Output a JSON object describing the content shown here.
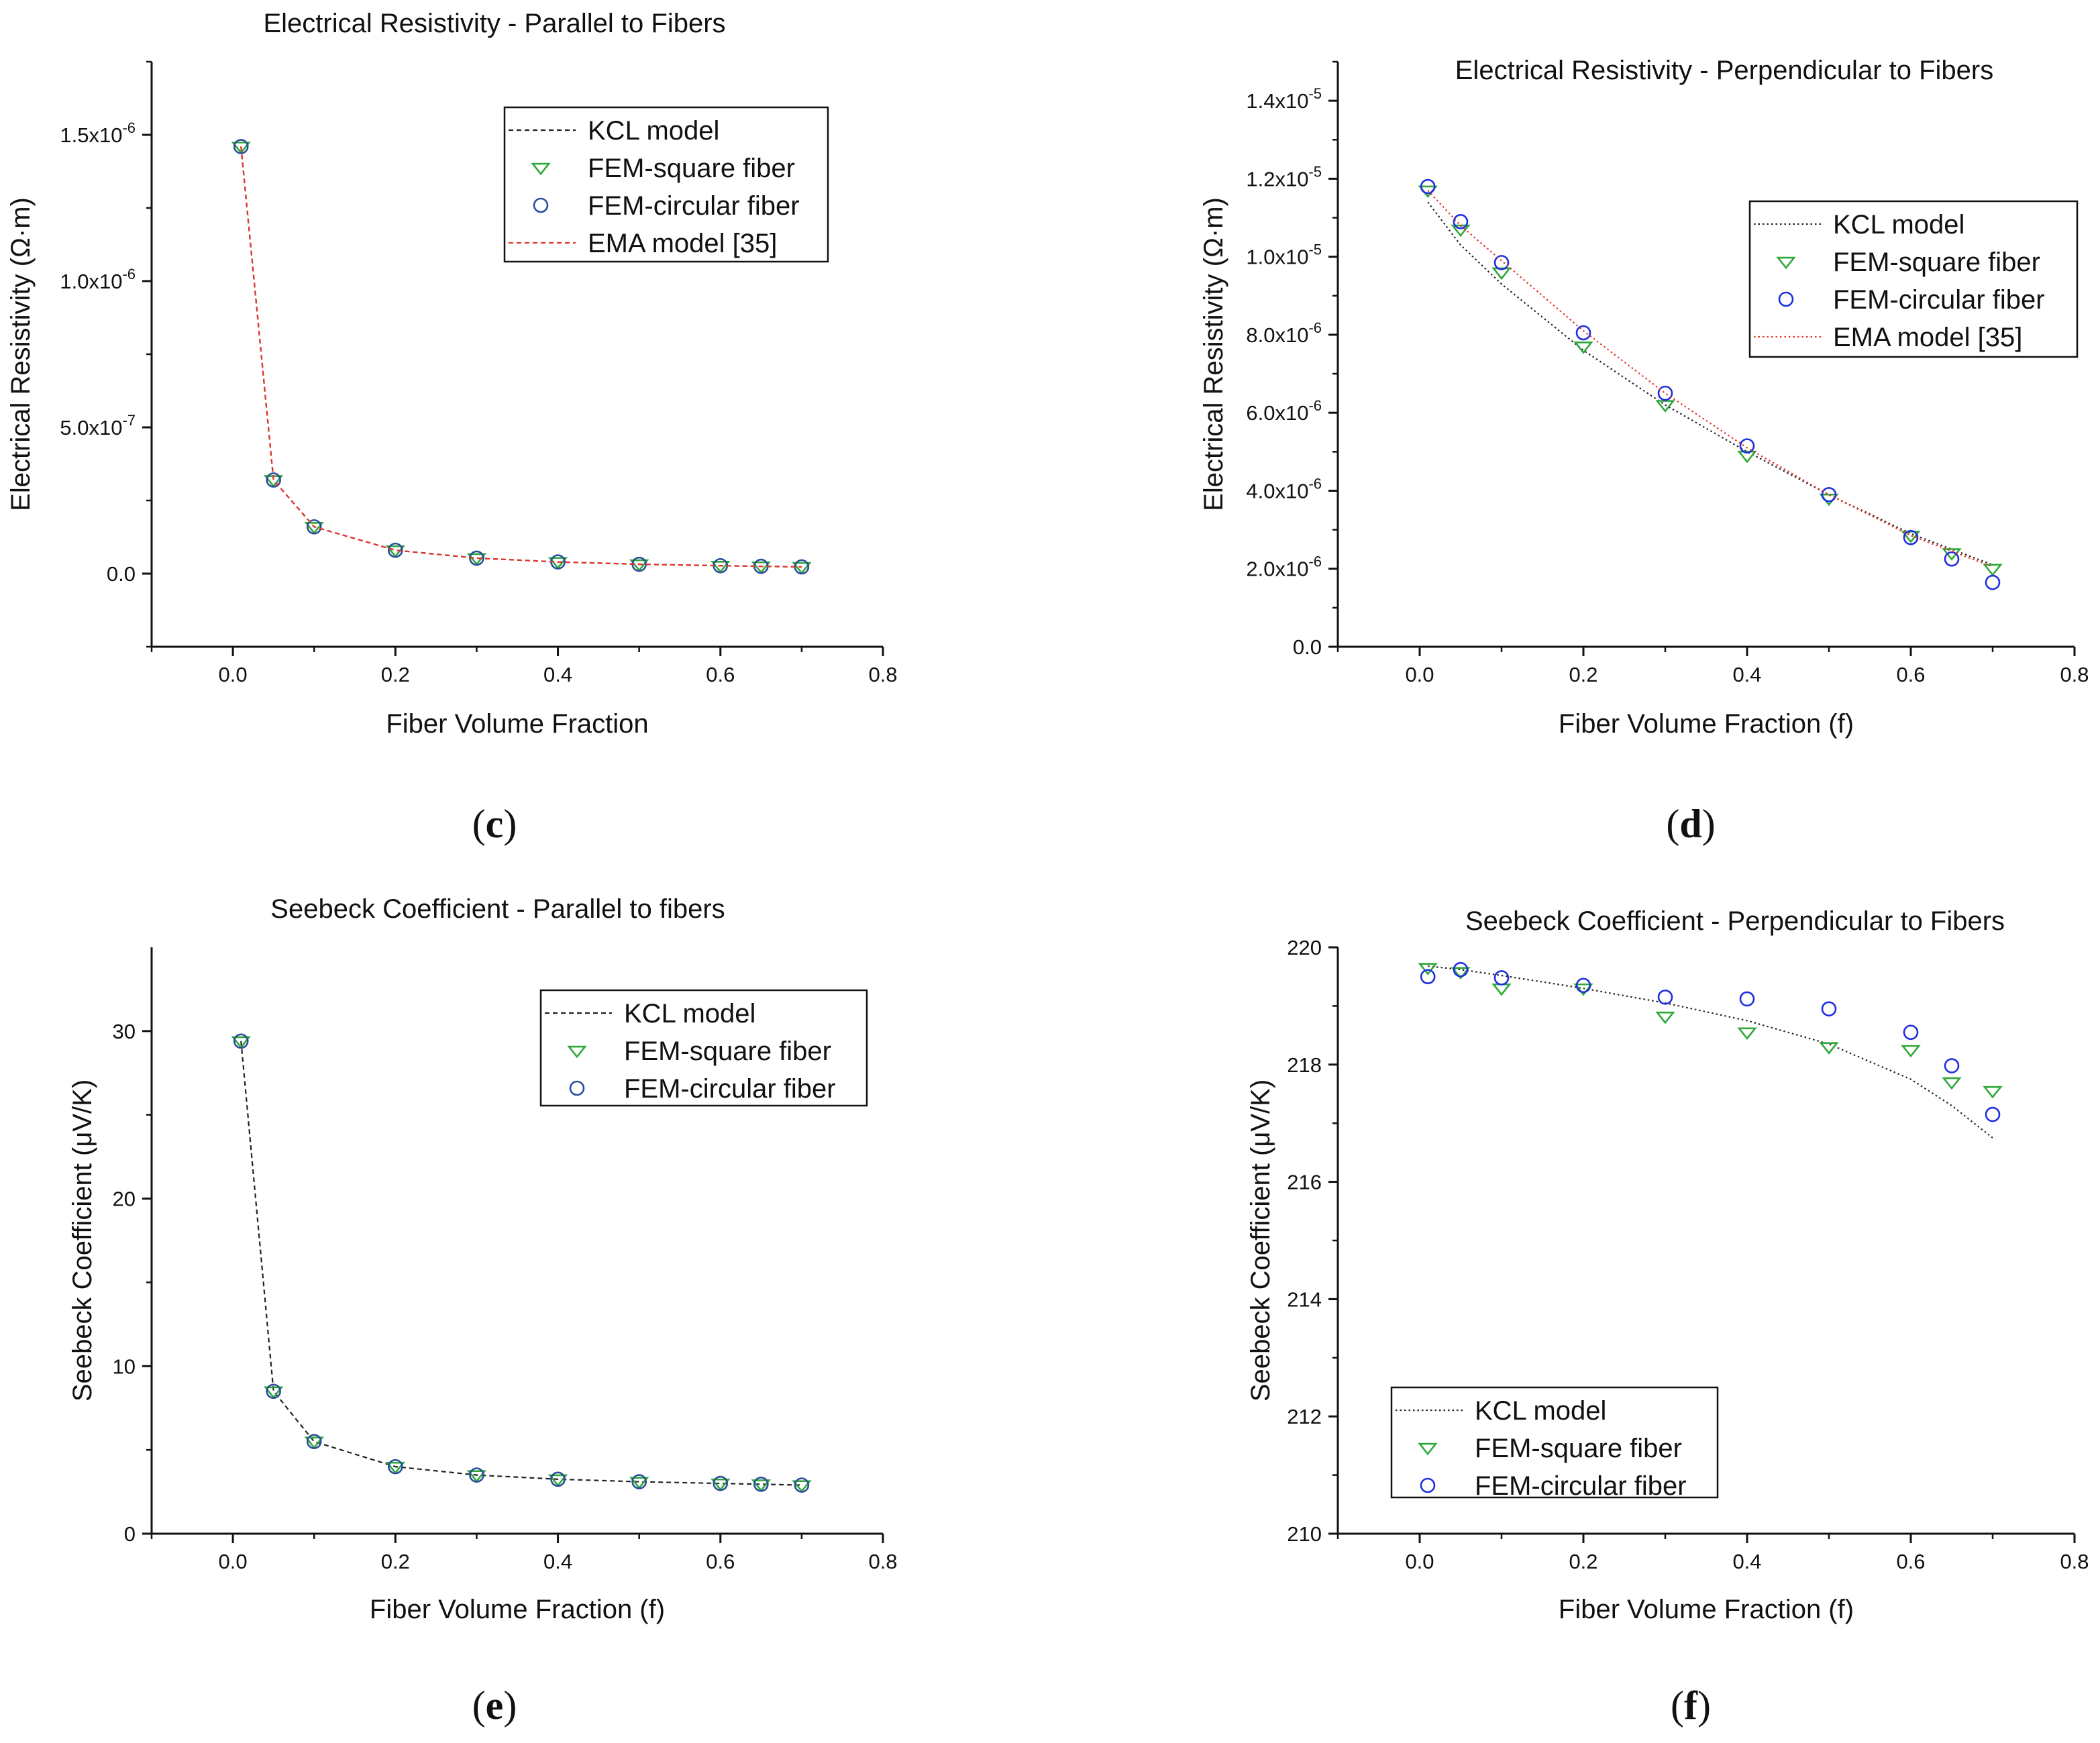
{
  "colors": {
    "kcl": "#222222",
    "ema": "#e8342a",
    "square_green": "#2fa83a",
    "circ_dark": "#2a4d9c",
    "circ_blue": "#1f2fe0",
    "axis": "#111111"
  },
  "chart_data": [
    {
      "id": "c",
      "panel_label": "c",
      "type": "line",
      "title": "Electrical Resistivity - Parallel to Fibers",
      "xlabel": "Fiber Volume Fraction",
      "ylabel": "Electrical Resistivity (Ω·m)",
      "xlim": [
        -0.1,
        0.8
      ],
      "ylim": [
        -2.5e-07,
        1.75e-06
      ],
      "xticks": [
        {
          "v": 0.0,
          "label": "0.0"
        },
        {
          "v": 0.2,
          "label": "0.2"
        },
        {
          "v": 0.4,
          "label": "0.4"
        },
        {
          "v": 0.6,
          "label": "0.6"
        },
        {
          "v": 0.8,
          "label": "0.8"
        }
      ],
      "yticks": [
        {
          "v": 0.0,
          "label": "0.0",
          "exp": ""
        },
        {
          "v": 5e-07,
          "label": "5.0x10",
          "exp": "-7"
        },
        {
          "v": 1e-06,
          "label": "1.0x10",
          "exp": "-6"
        },
        {
          "v": 1.5e-06,
          "label": "1.5x10",
          "exp": "-6"
        }
      ],
      "legend_position": "top-right",
      "x": [
        0.01,
        0.05,
        0.1,
        0.2,
        0.3,
        0.4,
        0.5,
        0.6,
        0.65,
        0.7
      ],
      "series": [
        {
          "name": "KCL model",
          "kind": "line",
          "style": "dash",
          "color": "#222222",
          "values": [
            1.46e-06,
            3.2e-07,
            1.6e-07,
            8e-08,
            5.3e-08,
            4e-08,
            3.2e-08,
            2.7e-08,
            2.5e-08,
            2.3e-08
          ]
        },
        {
          "name": "FEM-square fiber",
          "kind": "marker",
          "marker": "triangle-down",
          "color": "#2fa83a",
          "values": [
            1.46e-06,
            3.2e-07,
            1.6e-07,
            8e-08,
            5.3e-08,
            4e-08,
            3.2e-08,
            2.7e-08,
            2.5e-08,
            2.3e-08
          ]
        },
        {
          "name": "FEM-circular fiber",
          "kind": "marker",
          "marker": "circle",
          "color": "#2a4d9c",
          "values": [
            1.46e-06,
            3.2e-07,
            1.6e-07,
            8e-08,
            5.3e-08,
            4e-08,
            3.2e-08,
            2.7e-08,
            2.5e-08,
            2.3e-08
          ]
        },
        {
          "name": "EMA model [35]",
          "kind": "line",
          "style": "dash",
          "color": "#e8342a",
          "values": [
            1.46e-06,
            3.2e-07,
            1.6e-07,
            8e-08,
            5.3e-08,
            4e-08,
            3.2e-08,
            2.7e-08,
            2.5e-08,
            2.3e-08
          ]
        }
      ]
    },
    {
      "id": "d",
      "panel_label": "d",
      "type": "line",
      "title": "Electrical Resistivity - Perpendicular to Fibers",
      "xlabel": "Fiber Volume Fraction (f)",
      "ylabel": "Electrical Resistivity (Ω·m)",
      "xlim": [
        -0.1,
        0.8
      ],
      "ylim": [
        0.0,
        1.5e-05
      ],
      "xticks": [
        {
          "v": 0.0,
          "label": "0.0"
        },
        {
          "v": 0.2,
          "label": "0.2"
        },
        {
          "v": 0.4,
          "label": "0.4"
        },
        {
          "v": 0.6,
          "label": "0.6"
        },
        {
          "v": 0.8,
          "label": "0.8"
        }
      ],
      "yticks": [
        {
          "v": 0.0,
          "label": "0.0",
          "exp": ""
        },
        {
          "v": 2e-06,
          "label": "2.0x10",
          "exp": "-6"
        },
        {
          "v": 4e-06,
          "label": "4.0x10",
          "exp": "-6"
        },
        {
          "v": 6e-06,
          "label": "6.0x10",
          "exp": "-6"
        },
        {
          "v": 8e-06,
          "label": "8.0x10",
          "exp": "-6"
        },
        {
          "v": 1e-05,
          "label": "1.0x10",
          "exp": "-5"
        },
        {
          "v": 1.2e-05,
          "label": "1.2x10",
          "exp": "-5"
        },
        {
          "v": 1.4e-05,
          "label": "1.4x10",
          "exp": "-5"
        }
      ],
      "legend_position": "top-right",
      "x": [
        0.01,
        0.05,
        0.1,
        0.2,
        0.3,
        0.4,
        0.5,
        0.6,
        0.65,
        0.7
      ],
      "series": [
        {
          "name": "KCL model",
          "kind": "line",
          "style": "dot",
          "color": "#222222",
          "values": [
            1.14e-05,
            1.03e-05,
            9.3e-06,
            7.6e-06,
            6.2e-06,
            5e-06,
            3.9e-06,
            2.9e-06,
            2.5e-06,
            2.1e-06
          ]
        },
        {
          "name": "FEM-square fiber",
          "kind": "marker",
          "marker": "triangle-down",
          "color": "#2fa83a",
          "values": [
            1.17e-05,
            1.07e-05,
            9.6e-06,
            7.7e-06,
            6.2e-06,
            4.9e-06,
            3.8e-06,
            2.85e-06,
            2.4e-06,
            2e-06
          ]
        },
        {
          "name": "FEM-circular fiber",
          "kind": "marker",
          "marker": "circle",
          "color": "#1f2fe0",
          "values": [
            1.18e-05,
            1.09e-05,
            9.85e-06,
            8.05e-06,
            6.5e-06,
            5.15e-06,
            3.9e-06,
            2.8e-06,
            2.25e-06,
            1.65e-06
          ]
        },
        {
          "name": "EMA model [35]",
          "kind": "line",
          "style": "dot",
          "color": "#e8342a",
          "values": [
            1.17e-05,
            1.08e-05,
            9.9e-06,
            8.1e-06,
            6.5e-06,
            5.1e-06,
            3.9e-06,
            2.85e-06,
            2.45e-06,
            2.05e-06
          ]
        }
      ]
    },
    {
      "id": "e",
      "panel_label": "e",
      "type": "line",
      "title": "Seebeck Coefficient - Parallel to fibers",
      "xlabel": "Fiber Volume Fraction (f)",
      "ylabel": "Seebeck Coefficient (μV/K)",
      "xlim": [
        -0.1,
        0.8
      ],
      "ylim": [
        0,
        35
      ],
      "xticks": [
        {
          "v": 0.0,
          "label": "0.0"
        },
        {
          "v": 0.2,
          "label": "0.2"
        },
        {
          "v": 0.4,
          "label": "0.4"
        },
        {
          "v": 0.6,
          "label": "0.6"
        },
        {
          "v": 0.8,
          "label": "0.8"
        }
      ],
      "yticks": [
        {
          "v": 0,
          "label": "0",
          "exp": ""
        },
        {
          "v": 10,
          "label": "10",
          "exp": ""
        },
        {
          "v": 20,
          "label": "20",
          "exp": ""
        },
        {
          "v": 30,
          "label": "30",
          "exp": ""
        }
      ],
      "legend_position": "top-right",
      "x": [
        0.01,
        0.05,
        0.1,
        0.2,
        0.3,
        0.4,
        0.5,
        0.6,
        0.65,
        0.7
      ],
      "series": [
        {
          "name": "KCL model",
          "kind": "line",
          "style": "dash",
          "color": "#222222",
          "values": [
            29.4,
            8.5,
            5.5,
            4.0,
            3.5,
            3.25,
            3.1,
            3.0,
            2.95,
            2.9
          ]
        },
        {
          "name": "FEM-square fiber",
          "kind": "marker",
          "marker": "triangle-down",
          "color": "#2fa83a",
          "values": [
            29.4,
            8.5,
            5.5,
            4.0,
            3.5,
            3.25,
            3.1,
            3.0,
            2.95,
            2.9
          ]
        },
        {
          "name": "FEM-circular fiber",
          "kind": "marker",
          "marker": "circle",
          "color": "#2a4d9c",
          "values": [
            29.4,
            8.5,
            5.5,
            4.0,
            3.5,
            3.25,
            3.1,
            3.0,
            2.95,
            2.9
          ]
        }
      ]
    },
    {
      "id": "f",
      "panel_label": "f",
      "type": "line",
      "title": "Seebeck Coefficient - Perpendicular to Fibers",
      "xlabel": "Fiber Volume Fraction (f)",
      "ylabel": "Seebeck Coefficient (μV/K)",
      "xlim": [
        -0.1,
        0.8
      ],
      "ylim": [
        210,
        220
      ],
      "xticks": [
        {
          "v": 0.0,
          "label": "0.0"
        },
        {
          "v": 0.2,
          "label": "0.2"
        },
        {
          "v": 0.4,
          "label": "0.4"
        },
        {
          "v": 0.6,
          "label": "0.6"
        },
        {
          "v": 0.8,
          "label": "0.8"
        }
      ],
      "yticks": [
        {
          "v": 210,
          "label": "210",
          "exp": ""
        },
        {
          "v": 212,
          "label": "212",
          "exp": ""
        },
        {
          "v": 214,
          "label": "214",
          "exp": ""
        },
        {
          "v": 216,
          "label": "216",
          "exp": ""
        },
        {
          "v": 218,
          "label": "218",
          "exp": ""
        },
        {
          "v": 220,
          "label": "220",
          "exp": ""
        }
      ],
      "legend_position": "bottom-left",
      "x": [
        0.01,
        0.05,
        0.1,
        0.2,
        0.3,
        0.4,
        0.5,
        0.6,
        0.65,
        0.7
      ],
      "series": [
        {
          "name": "KCL model",
          "kind": "line",
          "style": "dot",
          "color": "#222222",
          "values": [
            219.68,
            219.62,
            219.52,
            219.3,
            219.05,
            218.75,
            218.35,
            217.75,
            217.3,
            216.75
          ]
        },
        {
          "name": "FEM-square fiber",
          "kind": "marker",
          "marker": "triangle-down",
          "color": "#2fa83a",
          "values": [
            219.65,
            219.58,
            219.3,
            219.3,
            218.82,
            218.55,
            218.3,
            218.25,
            217.7,
            217.55
          ]
        },
        {
          "name": "FEM-circular fiber",
          "kind": "marker",
          "marker": "circle",
          "color": "#1f2fe0",
          "values": [
            219.5,
            219.62,
            219.48,
            219.35,
            219.15,
            219.12,
            218.95,
            218.55,
            217.98,
            217.15
          ]
        }
      ]
    }
  ]
}
